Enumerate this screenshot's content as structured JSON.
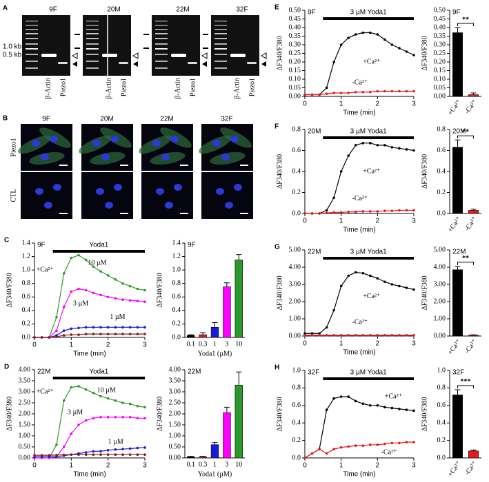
{
  "panels": {
    "A": {
      "letter": "A",
      "samples": [
        "9F",
        "20M",
        "22M",
        "32F"
      ],
      "markers": [
        "1.0 kb",
        "0.5 kb"
      ],
      "lanes": [
        "β-Actin",
        "Piezo1"
      ]
    },
    "B": {
      "letter": "B",
      "samples": [
        "9F",
        "20M",
        "22M",
        "32F"
      ],
      "rows": [
        "Piezo1",
        "CTL"
      ]
    }
  },
  "chart_data": [
    {
      "type": "line",
      "panel": "C",
      "label": "9F",
      "ylabel": "ΔF340/F380",
      "xlabel": "Time (min)",
      "stimulus": {
        "label": "Yoda1",
        "start": 0.5,
        "end": 3
      },
      "annotations": [
        "+Ca²⁺"
      ],
      "x": [
        0,
        0.2,
        0.4,
        0.6,
        0.8,
        1,
        1.2,
        1.4,
        1.6,
        1.8,
        2,
        2.2,
        2.4,
        2.6,
        2.8,
        3
      ],
      "xlim": [
        0,
        3
      ],
      "xticks": [
        0,
        1,
        2,
        3
      ],
      "ylim": [
        0,
        1.4
      ],
      "yticks": [
        {
          "value": 0,
          "label": "0.0"
        },
        0.2,
        0.4,
        0.6,
        0.8,
        {
          "value": 1,
          "label": "1.0"
        },
        1.2,
        1.4
      ],
      "series": [
        {
          "name": "10 µM",
          "color": "#2a9a2a",
          "values": [
            0,
            0,
            0,
            0.3,
            0.95,
            1.18,
            1.22,
            1.15,
            1.05,
            0.98,
            0.92,
            0.86,
            0.8,
            0.76,
            0.72,
            0.7
          ]
        },
        {
          "name": "3 µM",
          "color": "#ff00ff",
          "values": [
            0,
            0,
            0,
            0.1,
            0.45,
            0.68,
            0.72,
            0.7,
            0.66,
            0.63,
            0.6,
            0.58,
            0.56,
            0.55,
            0.54,
            0.53
          ]
        },
        {
          "name": "1 µM",
          "color": "#1a1adf",
          "values": [
            0,
            0,
            0,
            0.03,
            0.1,
            0.13,
            0.14,
            0.15,
            0.15,
            0.15,
            0.15,
            0.15,
            0.15,
            0.15,
            0.15,
            0.15
          ]
        },
        {
          "color": "#8b1a1a",
          "values": [
            0,
            0,
            0,
            0.01,
            0.03,
            0.04,
            0.04,
            0.05,
            0.05,
            0.05,
            0.05,
            0.05,
            0.05,
            0.05,
            0.05,
            0.05
          ]
        }
      ]
    },
    {
      "type": "bar",
      "label": "9F",
      "ylabel": "ΔF340/F380",
      "xlabel": "Yoda1 (µM)",
      "categories": [
        "0.1",
        "0.3",
        "1",
        "3",
        "10"
      ],
      "values": [
        0.03,
        0.04,
        0.15,
        0.75,
        1.15
      ],
      "errors": [
        0.01,
        0.03,
        0.07,
        0.06,
        0.08
      ],
      "colors": [
        "#000000",
        "#e8191f",
        "#1a1adf",
        "#ff00ff",
        "#2a9a2a"
      ],
      "ylim": [
        0,
        1.4
      ],
      "yticks": [
        {
          "value": 0,
          "label": "0.0"
        },
        0.2,
        0.4,
        0.6,
        0.8,
        {
          "value": 1,
          "label": "1.0"
        },
        1.2,
        1.4
      ]
    },
    {
      "type": "line",
      "panel": "D",
      "label": "22M",
      "ylabel": "ΔF340/F380",
      "xlabel": "Time (min)",
      "stimulus": {
        "label": "Yoda1",
        "start": 0.5,
        "end": 3
      },
      "annotations": [
        "+Ca²⁺"
      ],
      "x": [
        0,
        0.2,
        0.4,
        0.6,
        0.8,
        1,
        1.2,
        1.4,
        1.6,
        1.8,
        2,
        2.2,
        2.4,
        2.6,
        2.8,
        3
      ],
      "xlim": [
        0,
        3
      ],
      "xticks": [
        0,
        1,
        2,
        3
      ],
      "ylim": [
        0,
        4
      ],
      "yticks": [
        {
          "value": 0,
          "label": "0.00"
        },
        {
          "value": 0.5,
          "label": "0.50"
        },
        {
          "value": 1,
          "label": "1.00"
        },
        {
          "value": 1.5,
          "label": "1.50"
        },
        {
          "value": 2,
          "label": "2.00"
        },
        {
          "value": 2.5,
          "label": "2.50"
        },
        {
          "value": 3,
          "label": "3.00"
        },
        {
          "value": 3.5,
          "label": "3.50"
        },
        {
          "value": 4,
          "label": "4.00"
        }
      ],
      "series": [
        {
          "name": "10 µM",
          "color": "#2a9a2a",
          "values": [
            0,
            0,
            0,
            0.6,
            2.6,
            3.2,
            3.25,
            3.1,
            2.95,
            2.8,
            2.7,
            2.6,
            2.5,
            2.45,
            2.35,
            2.3
          ]
        },
        {
          "name": "3 µM",
          "color": "#ff00ff",
          "values": [
            0,
            0,
            0,
            0.05,
            0.5,
            1.1,
            1.5,
            1.7,
            1.8,
            1.85,
            1.85,
            1.85,
            1.85,
            1.85,
            1.8,
            1.8
          ]
        },
        {
          "name": "1 µM",
          "color": "#1a1adf",
          "values": [
            0.05,
            0.05,
            0.05,
            0.05,
            0.1,
            0.15,
            0.2,
            0.25,
            0.3,
            0.3,
            0.35,
            0.38,
            0.4,
            0.42,
            0.45,
            0.47
          ]
        },
        {
          "color": "#8b1a1a",
          "values": [
            0.12,
            0.12,
            0.12,
            0.13,
            0.14,
            0.15,
            0.15,
            0.15,
            0.15,
            0.15,
            0.15,
            0.15,
            0.15,
            0.15,
            0.15,
            0.15
          ]
        }
      ]
    },
    {
      "type": "bar",
      "label": "22M",
      "ylabel": "ΔF340/F380",
      "xlabel": "Yoda1 (µM)",
      "categories": [
        "0.1",
        "0.3",
        "1",
        "3",
        "10"
      ],
      "values": [
        0.05,
        0.05,
        0.6,
        2.05,
        3.3
      ],
      "errors": [
        0.02,
        0.02,
        0.1,
        0.25,
        0.6
      ],
      "colors": [
        "#000000",
        "#e8191f",
        "#1a1adf",
        "#ff00ff",
        "#2a9a2a"
      ],
      "ylim": [
        0,
        4
      ],
      "yticks": [
        {
          "value": 0,
          "label": "0.00"
        },
        {
          "value": 0.5,
          "label": "0.50"
        },
        {
          "value": 1,
          "label": "1.00"
        },
        {
          "value": 1.5,
          "label": "1.50"
        },
        {
          "value": 2,
          "label": "2.00"
        },
        {
          "value": 2.5,
          "label": "2.50"
        },
        {
          "value": 3,
          "label": "3.00"
        },
        {
          "value": 3.5,
          "label": "3.50"
        },
        {
          "value": 4,
          "label": "4.00"
        }
      ]
    },
    {
      "type": "line",
      "panel": "E",
      "label": "9F",
      "ylabel": "ΔF340/F380",
      "xlabel": "Time (min)",
      "stimulus": {
        "label": "3 µM Yoda1",
        "start": 0.5,
        "end": 3
      },
      "x": [
        0,
        0.2,
        0.4,
        0.6,
        0.8,
        1,
        1.2,
        1.4,
        1.6,
        1.8,
        2,
        2.2,
        2.4,
        2.6,
        2.8,
        3
      ],
      "xlim": [
        0,
        3
      ],
      "xticks": [
        0,
        1,
        2,
        3
      ],
      "ylim": [
        0,
        0.5
      ],
      "yticks": [
        {
          "value": 0,
          "label": "0.00"
        },
        0.05,
        {
          "value": 0.1,
          "label": "0.10"
        },
        0.15,
        {
          "value": 0.2,
          "label": "0.20"
        },
        0.25,
        {
          "value": 0.3,
          "label": "0.30"
        },
        0.35,
        {
          "value": 0.4,
          "label": "0.40"
        },
        0.45,
        {
          "value": 0.5,
          "label": "0.50"
        }
      ],
      "series": [
        {
          "name": "+Ca²⁺",
          "color": "#000000",
          "values": [
            0.01,
            0.01,
            0.01,
            0.05,
            0.2,
            0.3,
            0.34,
            0.36,
            0.37,
            0.37,
            0.36,
            0.33,
            0.3,
            0.28,
            0.26,
            0.24
          ]
        },
        {
          "name": "-Ca²⁺",
          "color": "#e8191f",
          "values": [
            0.01,
            0.01,
            0.01,
            0.015,
            0.02,
            0.02,
            0.02,
            0.025,
            0.025,
            0.025,
            0.03,
            0.03,
            0.03,
            0.03,
            0.03,
            0.03
          ]
        }
      ]
    },
    {
      "type": "bar",
      "label": "9F",
      "ylabel": "ΔF340/F380",
      "categories": [
        "+Ca²⁺",
        "-Ca²⁺"
      ],
      "values": [
        0.37,
        0.01
      ],
      "errors": [
        0.03,
        0.01
      ],
      "colors": [
        "#000000",
        "#e8191f"
      ],
      "significance": "**",
      "ylim": [
        0,
        0.5
      ],
      "yticks": [
        {
          "value": 0,
          "label": "0.00"
        },
        0.05,
        {
          "value": 0.1,
          "label": "0.10"
        },
        0.15,
        {
          "value": 0.2,
          "label": "0.20"
        },
        0.25,
        {
          "value": 0.3,
          "label": "0.30"
        },
        0.35,
        {
          "value": 0.4,
          "label": "0.40"
        },
        0.45,
        {
          "value": 0.5,
          "label": "0.50"
        }
      ]
    },
    {
      "type": "line",
      "panel": "F",
      "label": "20M",
      "ylabel": "ΔF340/F380",
      "xlabel": "Time (min)",
      "stimulus": {
        "label": "3 µM Yoda1",
        "start": 0.5,
        "end": 3
      },
      "x": [
        0,
        0.2,
        0.4,
        0.6,
        0.8,
        1,
        1.2,
        1.4,
        1.6,
        1.8,
        2,
        2.2,
        2.4,
        2.6,
        2.8,
        3
      ],
      "xlim": [
        0,
        3
      ],
      "xticks": [
        0,
        1,
        2,
        3
      ],
      "ylim": [
        0,
        0.8
      ],
      "yticks": [
        {
          "value": 0,
          "label": "0.0"
        },
        0.2,
        0.4,
        0.6,
        0.8
      ],
      "series": [
        {
          "name": "+Ca²⁺",
          "color": "#000000",
          "values": [
            0,
            0,
            0,
            0.03,
            0.15,
            0.4,
            0.55,
            0.65,
            0.67,
            0.67,
            0.65,
            0.65,
            0.63,
            0.62,
            0.61,
            0.6
          ]
        },
        {
          "name": "-Ca²⁺",
          "color": "#e8191f",
          "values": [
            0,
            0,
            0,
            0.005,
            0.01,
            0.01,
            0.015,
            0.015,
            0.02,
            0.02,
            0.02,
            0.025,
            0.025,
            0.03,
            0.03,
            0.03
          ]
        }
      ]
    },
    {
      "type": "bar",
      "label": "20M",
      "ylabel": "ΔF340/F380",
      "categories": [
        "+Ca²⁺",
        "-Ca²⁺"
      ],
      "values": [
        0.63,
        0.03
      ],
      "errors": [
        0.07,
        0.01
      ],
      "colors": [
        "#000000",
        "#e8191f"
      ],
      "significance": "**",
      "ylim": [
        0,
        0.8
      ],
      "yticks": [
        {
          "value": 0,
          "label": "0.0"
        },
        0.2,
        0.4,
        0.6,
        0.8
      ]
    },
    {
      "type": "line",
      "panel": "G",
      "label": "22M",
      "ylabel": "ΔF340/F380",
      "xlabel": "Time (min)",
      "stimulus": {
        "label": "3 µM Yoda1",
        "start": 0.5,
        "end": 3
      },
      "x": [
        0,
        0.2,
        0.4,
        0.6,
        0.8,
        1,
        1.2,
        1.4,
        1.6,
        1.8,
        2,
        2.2,
        2.4,
        2.6,
        2.8,
        3
      ],
      "xlim": [
        0,
        3
      ],
      "xticks": [
        0,
        1,
        2,
        3
      ],
      "ylim": [
        0,
        5
      ],
      "yticks": [
        {
          "value": 0,
          "label": "0.00"
        },
        {
          "value": 1,
          "label": "1.00"
        },
        {
          "value": 2,
          "label": "2.00"
        },
        {
          "value": 3,
          "label": "3.00"
        },
        {
          "value": 4,
          "label": "4.00"
        },
        {
          "value": 5,
          "label": "5.00"
        }
      ],
      "series": [
        {
          "name": "+Ca²⁺",
          "color": "#000000",
          "values": [
            0.15,
            0.15,
            0.15,
            0.5,
            1.5,
            2.9,
            3.5,
            3.7,
            3.65,
            3.5,
            3.35,
            3.15,
            3,
            2.9,
            2.8,
            2.7
          ]
        },
        {
          "name": "-Ca²⁺",
          "color": "#e8191f",
          "values": [
            0.05,
            0.05,
            0.05,
            0.05,
            0.05,
            0.05,
            0.05,
            0.05,
            0.05,
            0.05,
            0.05,
            0.05,
            0.05,
            0.05,
            0.05,
            0.05
          ]
        }
      ]
    },
    {
      "type": "bar",
      "label": "22M",
      "ylabel": "ΔF340/F380",
      "categories": [
        "+Ca²⁺",
        "-Ca²⁺"
      ],
      "values": [
        3.85,
        0.05
      ],
      "errors": [
        0.2,
        0.02
      ],
      "colors": [
        "#000000",
        "#e8191f"
      ],
      "significance": "**",
      "ylim": [
        0,
        5
      ],
      "yticks": [
        {
          "value": 0,
          "label": "0.00"
        },
        {
          "value": 1,
          "label": "1.00"
        },
        {
          "value": 2,
          "label": "2.00"
        },
        {
          "value": 3,
          "label": "3.00"
        },
        {
          "value": 4,
          "label": "4.00"
        },
        {
          "value": 5,
          "label": "5.00"
        }
      ]
    },
    {
      "type": "line",
      "panel": "H",
      "label": "32F",
      "ylabel": "ΔF340/F380",
      "xlabel": "Time (min)",
      "stimulus": {
        "label": "3 µM Yoda1",
        "start": 0.5,
        "end": 3
      },
      "x": [
        0,
        0.2,
        0.4,
        0.6,
        0.8,
        1,
        1.2,
        1.4,
        1.6,
        1.8,
        2,
        2.2,
        2.4,
        2.6,
        2.8,
        3
      ],
      "xlim": [
        0,
        3
      ],
      "xticks": [
        0,
        1,
        2,
        3
      ],
      "ylim": [
        0,
        1
      ],
      "yticks": [
        {
          "value": 0,
          "label": "0.0"
        },
        0.2,
        0.4,
        0.6,
        0.8,
        {
          "value": 1,
          "label": "1.0"
        }
      ],
      "series": [
        {
          "name": "+Ca²⁺",
          "color": "#000000",
          "values": [
            0,
            0.05,
            0.1,
            0.55,
            0.68,
            0.7,
            0.7,
            0.65,
            0.62,
            0.6,
            0.6,
            0.58,
            0.57,
            0.56,
            0.55,
            0.54
          ]
        },
        {
          "name": "-Ca²⁺",
          "color": "#e8191f",
          "values": [
            0,
            0.05,
            0.1,
            0.05,
            0.1,
            0.12,
            0.13,
            0.14,
            0.14,
            0.15,
            0.15,
            0.16,
            0.17,
            0.17,
            0.18,
            0.18
          ]
        }
      ]
    },
    {
      "type": "bar",
      "label": "32F",
      "ylabel": "ΔF340/F380",
      "categories": [
        "+Ca²⁺",
        "-Ca²⁺"
      ],
      "values": [
        0.72,
        0.08
      ],
      "errors": [
        0.06,
        0.01
      ],
      "colors": [
        "#000000",
        "#e8191f"
      ],
      "significance": "***",
      "ylim": [
        0,
        1
      ],
      "yticks": [
        {
          "value": 0,
          "label": "0.0"
        },
        0.2,
        0.4,
        0.6,
        0.8,
        {
          "value": 1,
          "label": "1.0"
        }
      ]
    }
  ]
}
